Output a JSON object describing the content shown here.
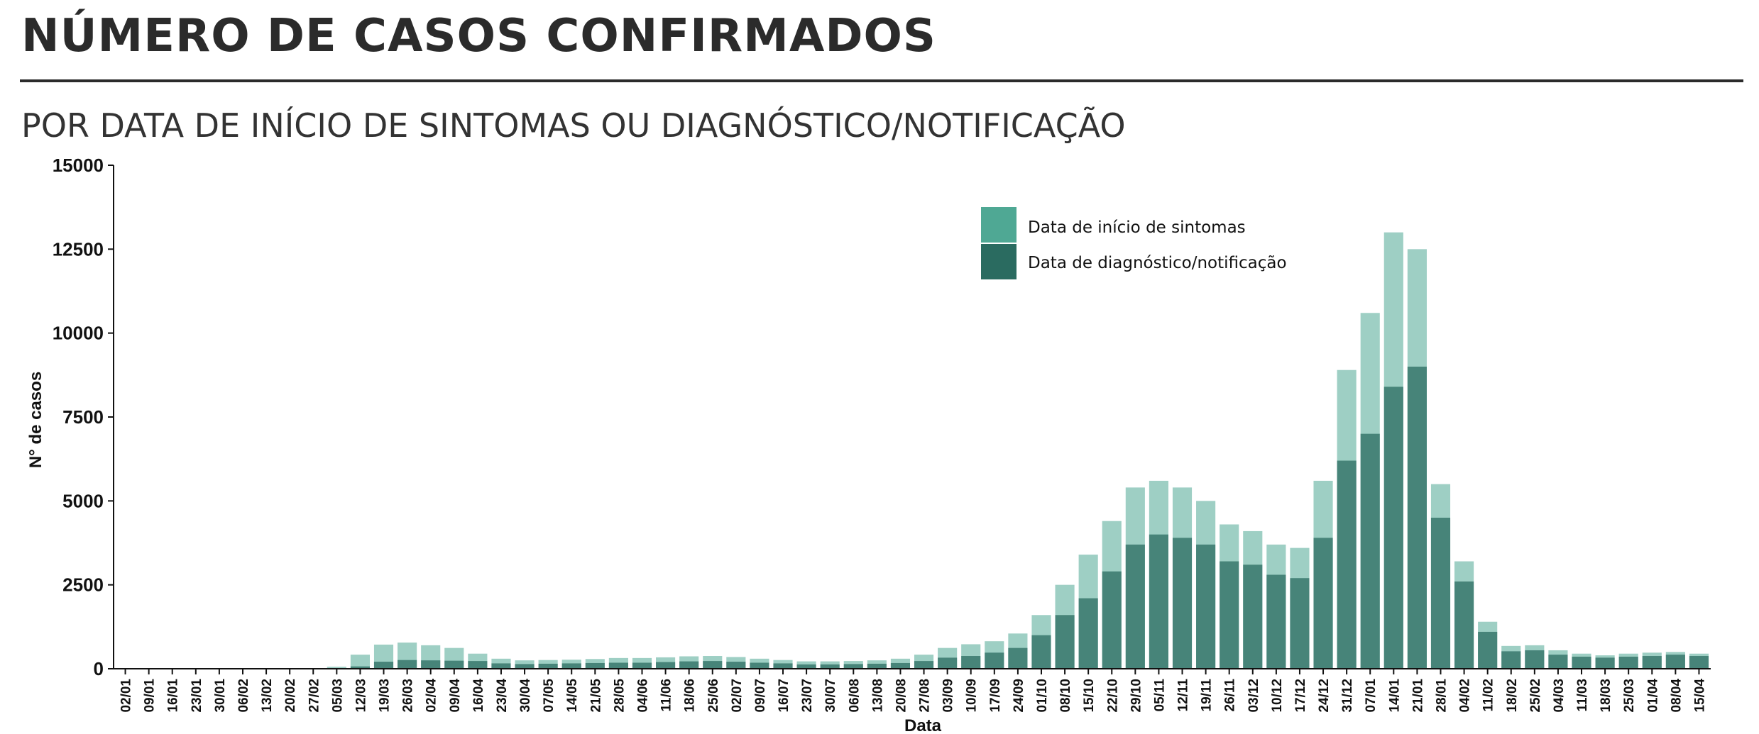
{
  "header": {
    "title": "NÚMERO DE CASOS CONFIRMADOS",
    "subtitle": "POR DATA DE INÍCIO DE SINTOMAS OU DIAGNÓSTICO/NOTIFICAÇÃO"
  },
  "colors": {
    "symptoms": "#4fa894",
    "diagnosis": "#2a6b60",
    "axis": "#111111",
    "title": "#2b2b2b"
  },
  "chart_data": {
    "type": "bar",
    "xlabel": "Data",
    "ylabel": "N° de casos",
    "ylim": [
      0,
      15000
    ],
    "yticks": [
      0,
      2500,
      5000,
      7500,
      10000,
      12500,
      15000
    ],
    "categories": [
      "02/01",
      "09/01",
      "16/01",
      "23/01",
      "30/01",
      "06/02",
      "13/02",
      "20/02",
      "27/02",
      "05/03",
      "12/03",
      "19/03",
      "26/03",
      "02/04",
      "09/04",
      "16/04",
      "23/04",
      "30/04",
      "07/05",
      "14/05",
      "21/05",
      "28/05",
      "04/06",
      "11/06",
      "18/06",
      "25/06",
      "02/07",
      "09/07",
      "16/07",
      "23/07",
      "30/07",
      "06/08",
      "13/08",
      "20/08",
      "27/08",
      "03/09",
      "10/09",
      "17/09",
      "24/09",
      "01/10",
      "08/10",
      "15/10",
      "22/10",
      "29/10",
      "05/11",
      "12/11",
      "19/11",
      "26/11",
      "03/12",
      "10/12",
      "17/12",
      "24/12",
      "31/12",
      "07/01",
      "14/01",
      "21/01",
      "28/01",
      "04/02",
      "11/02",
      "18/02",
      "25/02",
      "04/03",
      "11/03",
      "18/03",
      "25/03",
      "01/04",
      "08/04",
      "15/04"
    ],
    "legend_position": "top-right",
    "series": [
      {
        "name": "Data de início de sintomas",
        "values": [
          0,
          0,
          0,
          0,
          0,
          0,
          0,
          0,
          0,
          60,
          420,
          720,
          780,
          700,
          620,
          450,
          300,
          250,
          260,
          270,
          290,
          320,
          320,
          340,
          370,
          380,
          350,
          300,
          260,
          220,
          220,
          230,
          250,
          300,
          420,
          620,
          730,
          820,
          1050,
          1600,
          2500,
          3400,
          4400,
          5400,
          5600,
          5400,
          5000,
          4300,
          4100,
          3700,
          3600,
          5600,
          8900,
          10600,
          13000,
          12500,
          5500,
          3200,
          1400,
          680,
          700,
          550,
          450,
          400,
          450,
          480,
          500,
          450
        ]
      },
      {
        "name": "Data de diagnóstico/notificação",
        "values": [
          0,
          0,
          0,
          0,
          0,
          0,
          0,
          0,
          0,
          0,
          70,
          210,
          260,
          250,
          240,
          230,
          160,
          140,
          150,
          160,
          170,
          180,
          180,
          200,
          220,
          230,
          210,
          180,
          160,
          130,
          130,
          140,
          150,
          170,
          230,
          330,
          380,
          480,
          620,
          1000,
          1600,
          2100,
          2900,
          3700,
          4000,
          3900,
          3700,
          3200,
          3100,
          2800,
          2700,
          3900,
          6200,
          7000,
          8400,
          9000,
          4500,
          2600,
          1100,
          520,
          550,
          420,
          360,
          330,
          360,
          380,
          420,
          380
        ]
      }
    ]
  }
}
